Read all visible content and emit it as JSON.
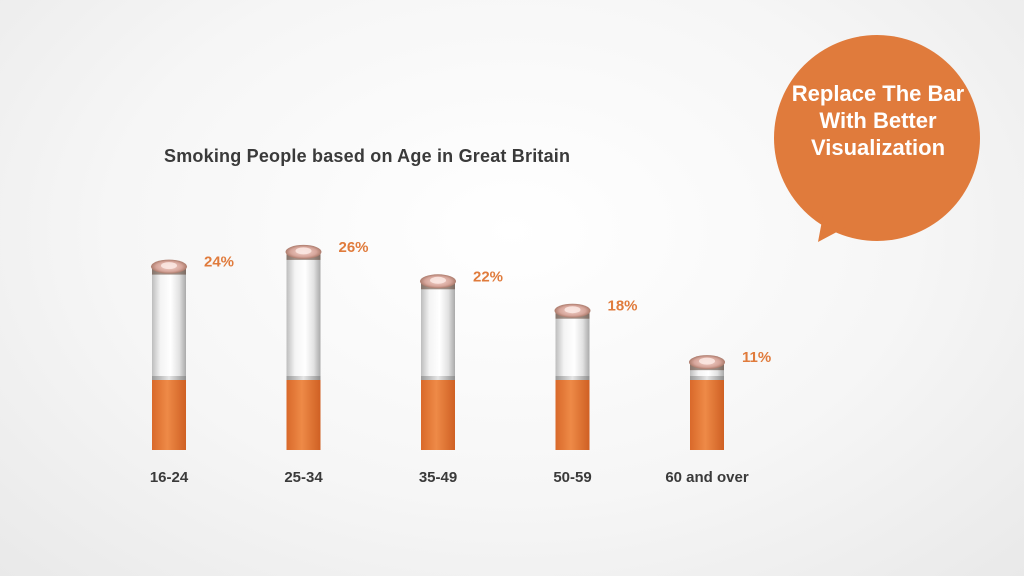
{
  "callout": {
    "text": "Replace The Bar With Better Visualization",
    "color": "#E07B3C"
  },
  "chart_data": {
    "type": "bar",
    "title": "Smoking People based on Age in Great Britain",
    "categories": [
      "16-24",
      "25-34",
      "35-49",
      "50-59",
      "60 and over"
    ],
    "values": [
      24,
      26,
      22,
      18,
      11
    ],
    "value_labels": [
      "24%",
      "26%",
      "22%",
      "18%",
      "11%"
    ],
    "unit": "%",
    "ylim": [
      0,
      26
    ],
    "grid": false,
    "legend": "none",
    "bar_color": "#E07B3C",
    "label_color": "#E07B3C"
  }
}
